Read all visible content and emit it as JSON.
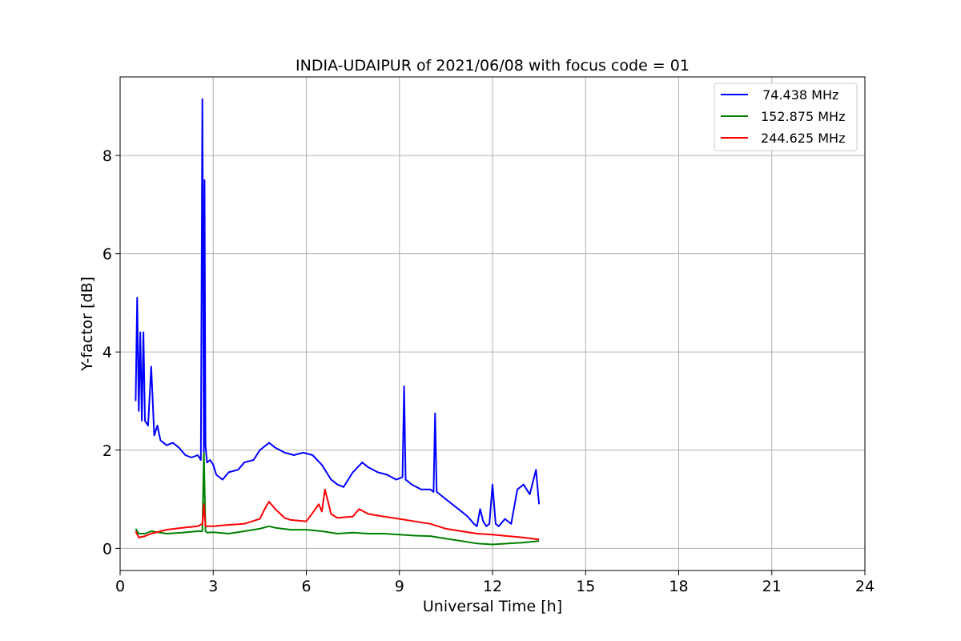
{
  "chart_data": {
    "type": "line",
    "title": "INDIA-UDAIPUR of 2021/06/08 with focus code = 01",
    "xlabel": "Universal Time [h]",
    "ylabel": "Y-factor [dB]",
    "xlim": [
      0,
      24
    ],
    "ylim": [
      -0.45,
      9.6
    ],
    "xticks": [
      0,
      3,
      6,
      9,
      12,
      15,
      18,
      21,
      24
    ],
    "yticks": [
      0,
      2,
      4,
      6,
      8
    ],
    "grid": true,
    "legend_position": "top-right",
    "series": [
      {
        "name": " 74.438 MHz",
        "color": "#0000ff",
        "x": [
          0.5,
          0.55,
          0.6,
          0.65,
          0.7,
          0.75,
          0.8,
          0.9,
          1.0,
          1.1,
          1.2,
          1.3,
          1.5,
          1.7,
          1.9,
          2.1,
          2.3,
          2.5,
          2.6,
          2.65,
          2.7,
          2.72,
          2.75,
          2.8,
          2.9,
          3.0,
          3.1,
          3.2,
          3.3,
          3.5,
          3.8,
          4.0,
          4.3,
          4.5,
          4.8,
          5.0,
          5.3,
          5.6,
          5.9,
          6.2,
          6.5,
          6.8,
          7.0,
          7.2,
          7.5,
          7.8,
          8.0,
          8.3,
          8.6,
          8.9,
          9.1,
          9.15,
          9.2,
          9.4,
          9.7,
          10.0,
          10.1,
          10.15,
          10.2,
          10.5,
          10.8,
          11.0,
          11.2,
          11.4,
          11.5,
          11.6,
          11.7,
          11.8,
          11.9,
          12.0,
          12.1,
          12.2,
          12.4,
          12.6,
          12.8,
          13.0,
          13.2,
          13.4,
          13.5
        ],
        "y": [
          3.0,
          5.1,
          2.8,
          4.4,
          2.6,
          4.4,
          2.6,
          2.5,
          3.7,
          2.3,
          2.5,
          2.2,
          2.1,
          2.15,
          2.05,
          1.9,
          1.85,
          1.9,
          1.8,
          9.15,
          1.9,
          7.5,
          2.1,
          1.75,
          1.8,
          1.7,
          1.5,
          1.45,
          1.4,
          1.55,
          1.6,
          1.75,
          1.8,
          2.0,
          2.15,
          2.05,
          1.95,
          1.9,
          1.95,
          1.9,
          1.7,
          1.4,
          1.3,
          1.25,
          1.55,
          1.75,
          1.65,
          1.55,
          1.5,
          1.4,
          1.45,
          3.3,
          1.4,
          1.3,
          1.2,
          1.2,
          1.15,
          2.75,
          1.15,
          1.0,
          0.85,
          0.75,
          0.65,
          0.5,
          0.45,
          0.8,
          0.55,
          0.45,
          0.5,
          1.3,
          0.5,
          0.45,
          0.6,
          0.5,
          1.2,
          1.3,
          1.1,
          1.6,
          0.9
        ]
      },
      {
        "name": "152.875 MHz",
        "color": "#008000",
        "x": [
          0.5,
          0.6,
          0.8,
          1.0,
          1.5,
          2.0,
          2.5,
          2.65,
          2.7,
          2.75,
          2.8,
          3.0,
          3.5,
          4.0,
          4.5,
          4.8,
          5.0,
          5.5,
          6.0,
          6.5,
          7.0,
          7.5,
          8.0,
          8.5,
          9.0,
          9.5,
          10.0,
          10.5,
          11.0,
          11.5,
          12.0,
          12.5,
          13.0,
          13.5
        ],
        "y": [
          0.4,
          0.3,
          0.3,
          0.35,
          0.3,
          0.32,
          0.35,
          0.35,
          1.95,
          0.35,
          0.32,
          0.33,
          0.3,
          0.35,
          0.4,
          0.45,
          0.42,
          0.38,
          0.38,
          0.35,
          0.3,
          0.32,
          0.3,
          0.3,
          0.28,
          0.26,
          0.25,
          0.2,
          0.15,
          0.1,
          0.08,
          0.1,
          0.12,
          0.15
        ]
      },
      {
        "name": "244.625 MHz",
        "color": "#ff0000",
        "x": [
          0.5,
          0.6,
          0.8,
          1.0,
          1.5,
          2.0,
          2.5,
          2.65,
          2.7,
          2.75,
          2.8,
          3.0,
          3.5,
          4.0,
          4.5,
          4.7,
          4.8,
          5.0,
          5.3,
          5.5,
          6.0,
          6.2,
          6.4,
          6.5,
          6.6,
          6.8,
          7.0,
          7.5,
          7.7,
          8.0,
          8.5,
          9.0,
          9.5,
          10.0,
          10.5,
          11.0,
          11.5,
          12.0,
          12.5,
          13.0,
          13.5
        ],
        "y": [
          0.35,
          0.22,
          0.25,
          0.3,
          0.38,
          0.42,
          0.45,
          0.5,
          0.9,
          0.45,
          0.45,
          0.45,
          0.48,
          0.5,
          0.6,
          0.85,
          0.95,
          0.8,
          0.62,
          0.58,
          0.55,
          0.72,
          0.9,
          0.75,
          1.2,
          0.7,
          0.62,
          0.65,
          0.8,
          0.7,
          0.65,
          0.6,
          0.55,
          0.5,
          0.4,
          0.35,
          0.3,
          0.28,
          0.25,
          0.22,
          0.18
        ]
      }
    ]
  }
}
